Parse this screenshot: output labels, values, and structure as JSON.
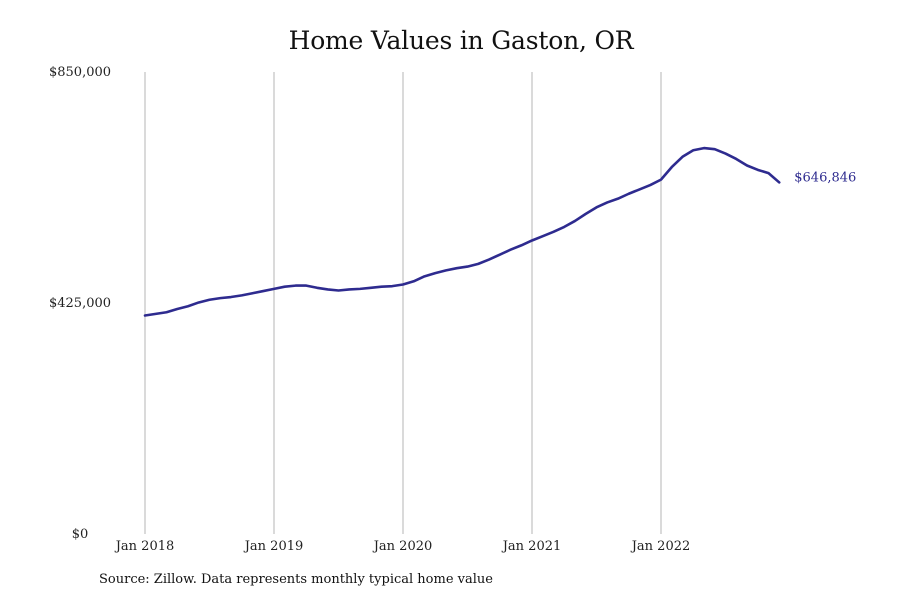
{
  "source_note": "Source: Zillow. Data represents monthly typical home value",
  "colors": {
    "line": "#2e2b8f",
    "gridline": "#b5b5b5"
  },
  "chart_data": {
    "type": "line",
    "title": "Home Values in Gaston, OR",
    "xlabel": "",
    "ylabel": "",
    "x_tick_labels": [
      "Jan 2018",
      "Jan 2019",
      "Jan 2020",
      "Jan 2021",
      "Jan 2022"
    ],
    "y_tick_labels": [
      "$850,000",
      "$425,000",
      "$0"
    ],
    "y_ticks": [
      850000,
      425000,
      0
    ],
    "ylim": [
      0,
      850000
    ],
    "xlim": [
      "2018-01",
      "2022-12"
    ],
    "grid": "vertical",
    "end_label": "$646,846",
    "x": [
      "2018-01",
      "2018-02",
      "2018-03",
      "2018-04",
      "2018-05",
      "2018-06",
      "2018-07",
      "2018-08",
      "2018-09",
      "2018-10",
      "2018-11",
      "2018-12",
      "2019-01",
      "2019-02",
      "2019-03",
      "2019-04",
      "2019-05",
      "2019-06",
      "2019-07",
      "2019-08",
      "2019-09",
      "2019-10",
      "2019-11",
      "2019-12",
      "2020-01",
      "2020-02",
      "2020-03",
      "2020-04",
      "2020-05",
      "2020-06",
      "2020-07",
      "2020-08",
      "2020-09",
      "2020-10",
      "2020-11",
      "2020-12",
      "2021-01",
      "2021-02",
      "2021-03",
      "2021-04",
      "2021-05",
      "2021-06",
      "2021-07",
      "2021-08",
      "2021-09",
      "2021-10",
      "2021-11",
      "2021-12",
      "2022-01",
      "2022-02",
      "2022-03",
      "2022-04",
      "2022-05",
      "2022-06",
      "2022-07",
      "2022-08",
      "2022-09",
      "2022-10",
      "2022-11",
      "2022-12"
    ],
    "series": [
      {
        "values": [
          402000,
          405000,
          408000,
          414000,
          419000,
          426000,
          431000,
          434000,
          436000,
          439000,
          443000,
          447000,
          451000,
          455000,
          457000,
          457000,
          453000,
          450000,
          448000,
          450000,
          451000,
          453000,
          455000,
          456000,
          459000,
          465000,
          474000,
          480000,
          485000,
          489000,
          492000,
          497000,
          505000,
          514000,
          523000,
          531000,
          540000,
          548000,
          556000,
          565000,
          576000,
          589000,
          601000,
          610000,
          617000,
          626000,
          634000,
          642000,
          652000,
          675000,
          694000,
          706000,
          710000,
          708000,
          700000,
          690000,
          678000,
          670000,
          664000,
          646846
        ]
      }
    ]
  }
}
